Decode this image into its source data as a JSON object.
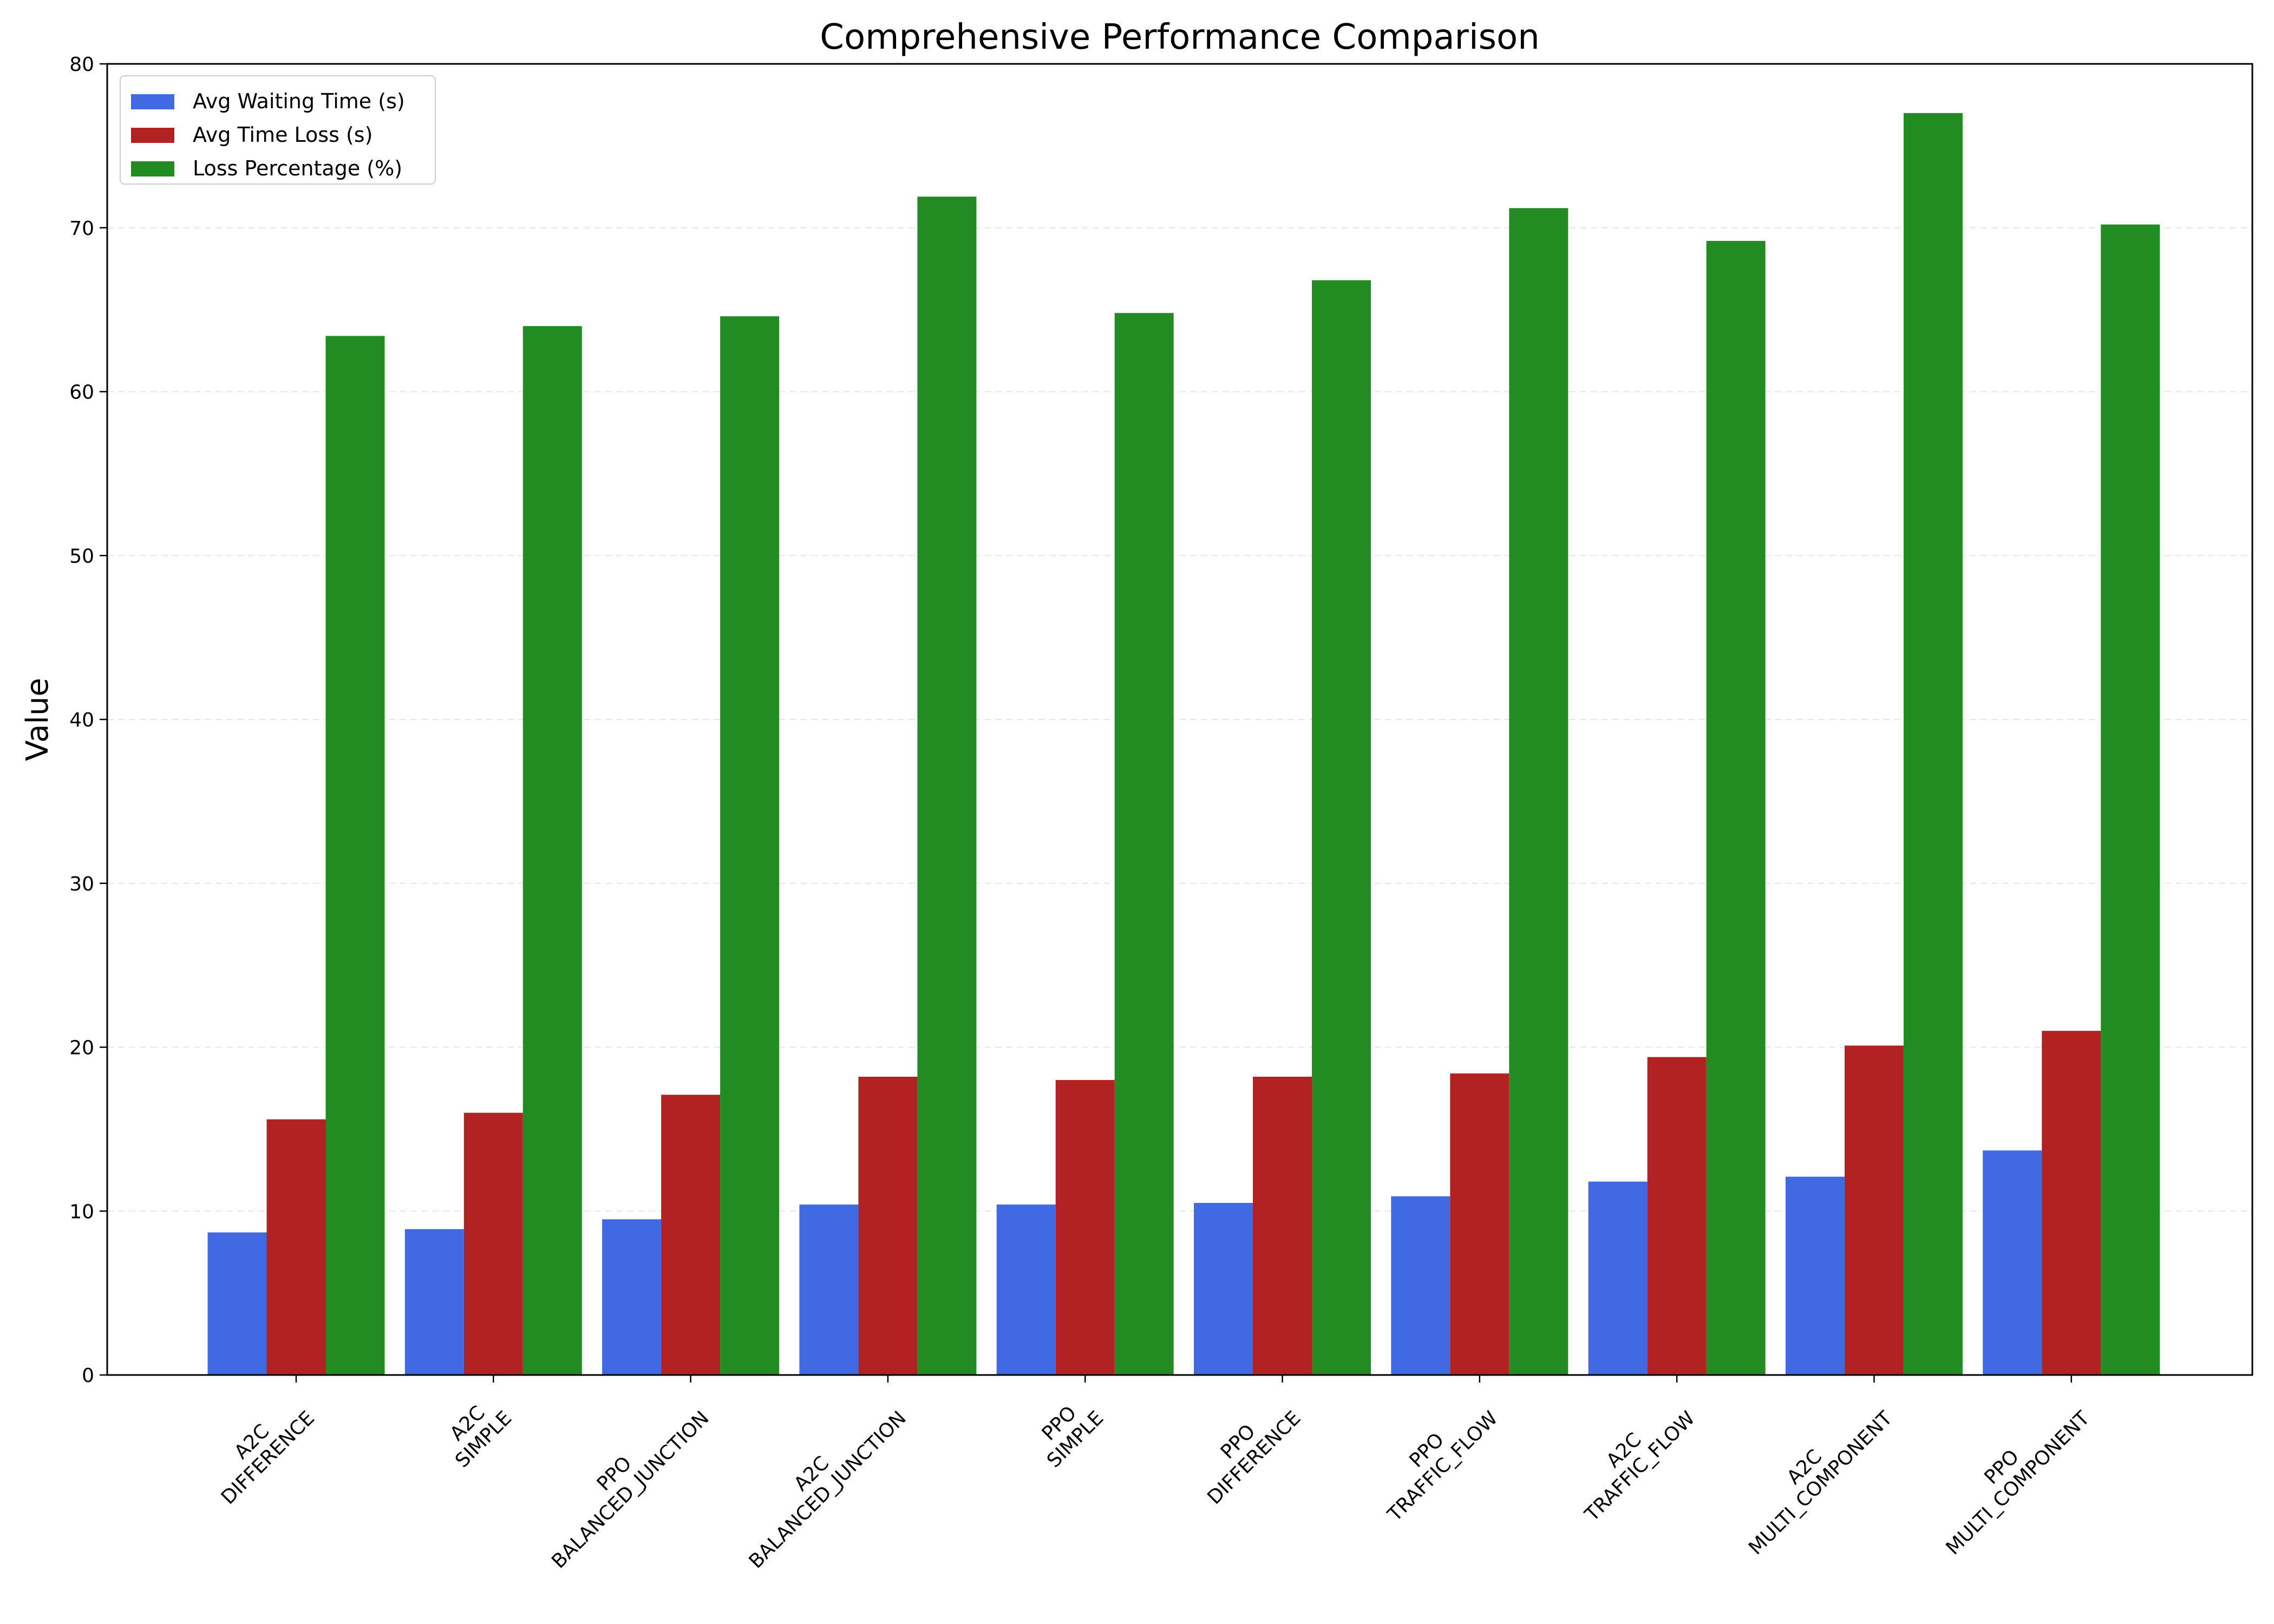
{
  "chart_data": {
    "type": "bar",
    "title": "Comprehensive Performance Comparison",
    "xlabel": "",
    "ylabel": "Value",
    "ylim": [
      0,
      80
    ],
    "yticks": [
      0,
      10,
      20,
      30,
      40,
      50,
      60,
      70,
      80
    ],
    "grid": "horizontal dashed",
    "legend_position": "top-left",
    "categories": [
      [
        "A2C",
        "DIFFERENCE"
      ],
      [
        "A2C",
        "SIMPLE"
      ],
      [
        "PPO",
        "BALANCED_JUNCTION"
      ],
      [
        "A2C",
        "BALANCED_JUNCTION"
      ],
      [
        "PPO",
        "SIMPLE"
      ],
      [
        "PPO",
        "DIFFERENCE"
      ],
      [
        "PPO",
        "TRAFFIC_FLOW"
      ],
      [
        "A2C",
        "TRAFFIC_FLOW"
      ],
      [
        "A2C",
        "MULTI_COMPONENT"
      ],
      [
        "PPO",
        "MULTI_COMPONENT"
      ]
    ],
    "series": [
      {
        "name": "Avg Waiting Time (s)",
        "color": "#4169e1",
        "values": [
          8.7,
          8.9,
          9.5,
          10.4,
          10.4,
          10.5,
          10.9,
          11.8,
          12.1,
          13.7
        ]
      },
      {
        "name": "Avg Time Loss (s)",
        "color": "#b22222",
        "values": [
          15.6,
          16.0,
          17.1,
          18.2,
          18.0,
          18.2,
          18.4,
          19.4,
          20.1,
          21.0
        ]
      },
      {
        "name": "Loss Percentage (%)",
        "color": "#228b22",
        "values": [
          63.4,
          64.0,
          64.6,
          71.9,
          64.8,
          66.8,
          71.2,
          69.2,
          77.0,
          70.2
        ]
      }
    ]
  }
}
